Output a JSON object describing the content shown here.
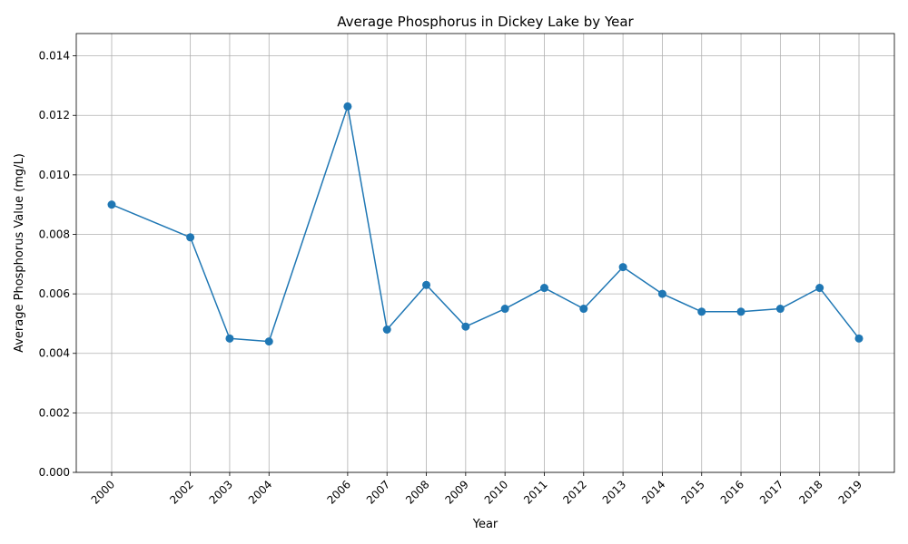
{
  "chart_data": {
    "type": "line",
    "title": "Average Phosphorus in Dickey Lake by Year",
    "xlabel": "Year",
    "ylabel": "Average Phosphorus Value (mg/L)",
    "x": [
      2000,
      2002,
      2003,
      2004,
      2006,
      2007,
      2008,
      2009,
      2010,
      2011,
      2012,
      2013,
      2014,
      2015,
      2016,
      2017,
      2018,
      2019
    ],
    "series": [
      {
        "values": [
          0.009,
          0.0079,
          0.0045,
          0.0044,
          0.0123,
          0.0048,
          0.0063,
          0.0049,
          0.0055,
          0.0062,
          0.0055,
          0.0069,
          0.006,
          0.0054,
          0.0054,
          0.0055,
          0.0062,
          0.0045
        ],
        "color": "#1f77b4"
      }
    ],
    "x_tick_labels": [
      "2000",
      "2002",
      "2003",
      "2004",
      "2006",
      "2007",
      "2008",
      "2009",
      "2010",
      "2011",
      "2012",
      "2013",
      "2014",
      "2015",
      "2016",
      "2017",
      "2018",
      "2019"
    ],
    "y_ticks": [
      0.0,
      0.002,
      0.004,
      0.006,
      0.008,
      0.01,
      0.012,
      0.014
    ],
    "y_tick_labels": [
      "0.000",
      "0.002",
      "0.004",
      "0.006",
      "0.008",
      "0.010",
      "0.012",
      "0.014"
    ],
    "xlim": [
      1999.1,
      2019.9
    ],
    "ylim": [
      0,
      0.01475
    ],
    "grid": true,
    "x_tick_rotation_deg": 45
  }
}
